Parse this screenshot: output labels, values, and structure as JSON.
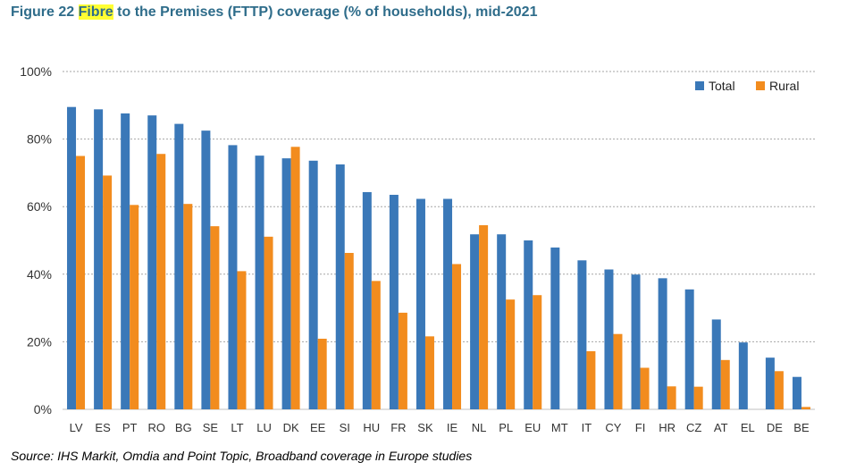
{
  "title": {
    "prefix": "Figure 22 ",
    "highlight": "Fibre",
    "rest": " to the Premises (FTTP) coverage (% of households), mid-2021"
  },
  "source": "Source: IHS Markit, Omdia and Point Topic, Broadband coverage in Europe studies",
  "chart_data": {
    "type": "bar",
    "categories": [
      "LV",
      "ES",
      "PT",
      "RO",
      "BG",
      "SE",
      "LT",
      "LU",
      "DK",
      "EE",
      "SI",
      "HU",
      "FR",
      "SK",
      "IE",
      "NL",
      "PL",
      "EU",
      "MT",
      "IT",
      "CY",
      "FI",
      "HR",
      "CZ",
      "AT",
      "EL",
      "DE",
      "BE"
    ],
    "series": [
      {
        "name": "Total",
        "color": "#3a78b8",
        "values": [
          89.5,
          88.8,
          87.6,
          87.0,
          84.5,
          82.5,
          78.2,
          75.1,
          74.3,
          73.6,
          72.5,
          64.3,
          63.5,
          62.3,
          62.3,
          51.8,
          51.8,
          50.0,
          47.9,
          44.1,
          41.4,
          39.9,
          38.8,
          35.5,
          26.6,
          19.8,
          15.3,
          9.6
        ]
      },
      {
        "name": "Rural",
        "color": "#f28c1e",
        "values": [
          75.0,
          69.2,
          60.5,
          75.6,
          60.8,
          54.2,
          40.9,
          51.1,
          77.7,
          20.9,
          46.3,
          38.0,
          28.6,
          21.6,
          43.0,
          54.5,
          32.5,
          33.8,
          0.0,
          17.2,
          22.3,
          12.3,
          6.8,
          6.7,
          14.6,
          0.0,
          11.3,
          0.7
        ]
      }
    ],
    "y_ticks": [
      "0%",
      "20%",
      "40%",
      "60%",
      "80%",
      "100%"
    ],
    "ylim": [
      0,
      100
    ],
    "grid": true,
    "legend": "top-right"
  }
}
